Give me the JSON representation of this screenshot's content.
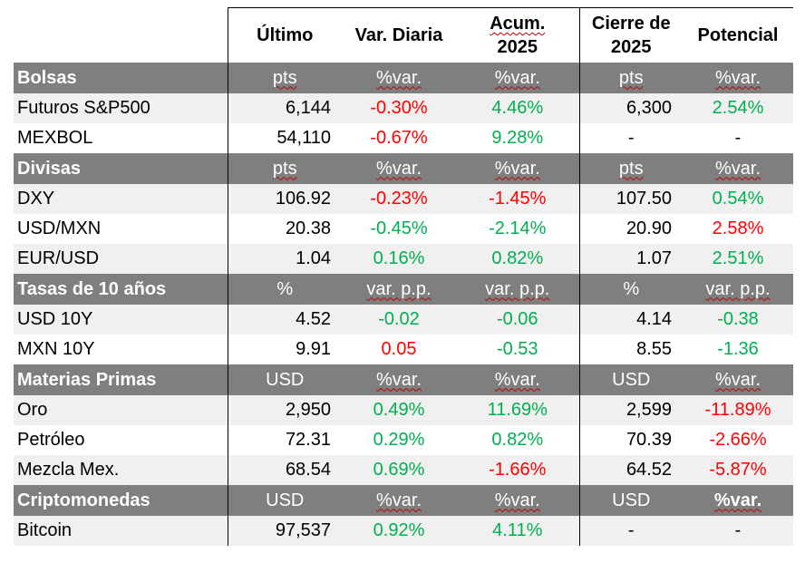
{
  "colors": {
    "section_bg": "#7f7f7f",
    "alt_row_bg": "#f0f0f0",
    "negative": "#ff0000",
    "positive": "#00b050"
  },
  "header": {
    "ultimo": "Último",
    "var_diaria": "Var. Diaria",
    "acum_line1": "Acum.",
    "acum_line2": "2025",
    "cierre_line1": "Cierre de",
    "cierre_line2": "2025",
    "potencial": "Potencial"
  },
  "sections": [
    {
      "name": "Bolsas",
      "units": [
        "pts",
        "%var.",
        "%var.",
        "pts",
        "%var."
      ],
      "rows": [
        {
          "name": "Futuros S&P500",
          "ultimo": "6,144",
          "var": "-0.30%",
          "var_color": "neg",
          "acum": "4.46%",
          "acum_color": "pos",
          "cierre": "6,300",
          "pot": "2.54%",
          "pot_color": "pos"
        },
        {
          "name": "MEXBOL",
          "ultimo": "54,110",
          "var": "-0.67%",
          "var_color": "neg",
          "acum": "9.28%",
          "acum_color": "pos",
          "cierre": "-",
          "pot": "-",
          "pot_color": "neu"
        }
      ]
    },
    {
      "name": "Divisas",
      "units": [
        "pts",
        "%var.",
        "%var.",
        "pts",
        "%var."
      ],
      "rows": [
        {
          "name": "DXY",
          "ultimo": "106.92",
          "var": "-0.23%",
          "var_color": "neg",
          "acum": "-1.45%",
          "acum_color": "neg",
          "cierre": "107.50",
          "pot": "0.54%",
          "pot_color": "pos"
        },
        {
          "name": "USD/MXN",
          "ultimo": "20.38",
          "var": "-0.45%",
          "var_color": "pos",
          "acum": "-2.14%",
          "acum_color": "pos",
          "cierre": "20.90",
          "pot": "2.58%",
          "pot_color": "neg"
        },
        {
          "name": "EUR/USD",
          "ultimo": "1.04",
          "var": "0.16%",
          "var_color": "pos",
          "acum": "0.82%",
          "acum_color": "pos",
          "cierre": "1.07",
          "pot": "2.51%",
          "pot_color": "pos"
        }
      ]
    },
    {
      "name": "Tasas de 10 años",
      "units": [
        "%",
        "var. p.p.",
        "var. p.p.",
        "%",
        "var. p.p."
      ],
      "rows": [
        {
          "name": "USD 10Y",
          "ultimo": "4.52",
          "var": "-0.02",
          "var_color": "pos",
          "acum": "-0.06",
          "acum_color": "pos",
          "cierre": "4.14",
          "pot": "-0.38",
          "pot_color": "pos"
        },
        {
          "name": "MXN 10Y",
          "ultimo": "9.91",
          "var": "0.05",
          "var_color": "neg",
          "acum": "-0.53",
          "acum_color": "pos",
          "cierre": "8.55",
          "pot": "-1.36",
          "pot_color": "pos"
        }
      ]
    },
    {
      "name": "Materias Primas",
      "units": [
        "USD",
        "%var.",
        "%var.",
        "USD",
        "%var."
      ],
      "rows": [
        {
          "name": "Oro",
          "ultimo": "2,950",
          "var": "0.49%",
          "var_color": "pos",
          "acum": "11.69%",
          "acum_color": "pos",
          "cierre": "2,599",
          "pot": "-11.89%",
          "pot_color": "neg"
        },
        {
          "name": "Petróleo",
          "ultimo": "72.31",
          "var": "0.29%",
          "var_color": "pos",
          "acum": "0.82%",
          "acum_color": "pos",
          "cierre": "70.39",
          "pot": "-2.66%",
          "pot_color": "neg"
        },
        {
          "name": "Mezcla Mex.",
          "ultimo": "68.54",
          "var": "0.69%",
          "var_color": "pos",
          "acum": "-1.66%",
          "acum_color": "neg",
          "cierre": "64.52",
          "pot": "-5.87%",
          "pot_color": "neg"
        }
      ]
    },
    {
      "name": "Criptomonedas",
      "units": [
        "USD",
        "%var.",
        "%var.",
        "USD",
        "%var."
      ],
      "units_bold_last": true,
      "rows": [
        {
          "name": "Bitcoin",
          "ultimo": "97,537",
          "var": "0.92%",
          "var_color": "pos",
          "acum": "4.11%",
          "acum_color": "pos",
          "cierre": "-",
          "pot": "-",
          "pot_color": "neu"
        }
      ]
    }
  ]
}
